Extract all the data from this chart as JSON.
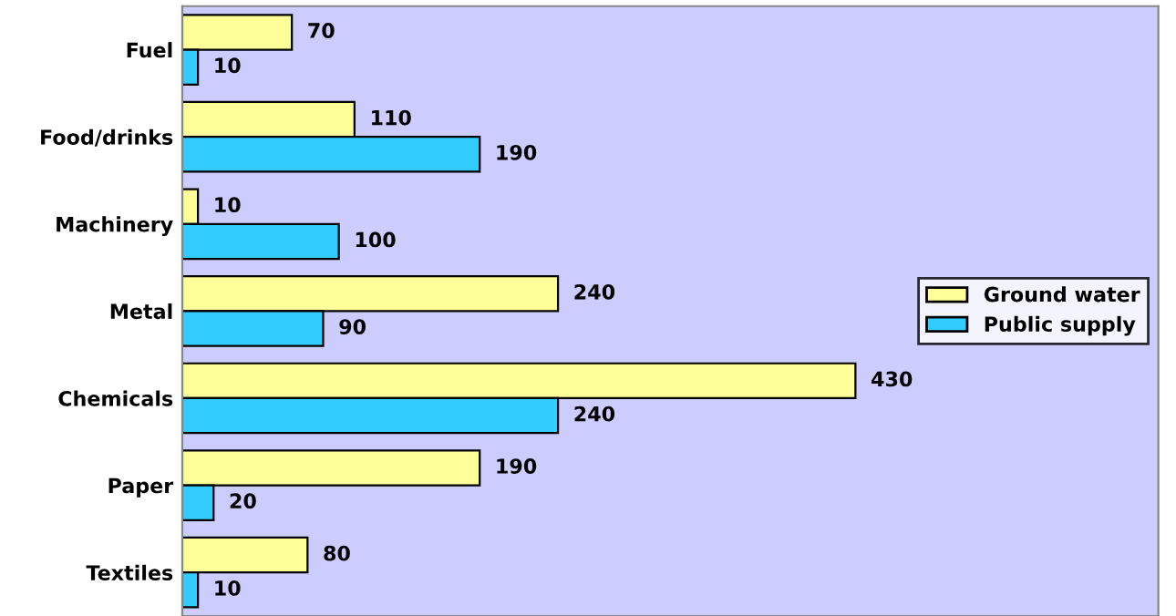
{
  "chart_data": {
    "type": "bar",
    "orientation": "horizontal",
    "categories": [
      "Fuel",
      "Food/drinks",
      "Machinery",
      "Metal",
      "Chemicals",
      "Paper",
      "Textiles"
    ],
    "series": [
      {
        "name": "Ground water",
        "color": "#ffff99",
        "values": [
          70,
          110,
          10,
          240,
          430,
          190,
          80
        ]
      },
      {
        "name": "Public supply",
        "color": "#33ccff",
        "values": [
          10,
          190,
          100,
          90,
          240,
          20,
          10
        ]
      }
    ],
    "data_labels": true,
    "legend": "right",
    "grid": false
  }
}
